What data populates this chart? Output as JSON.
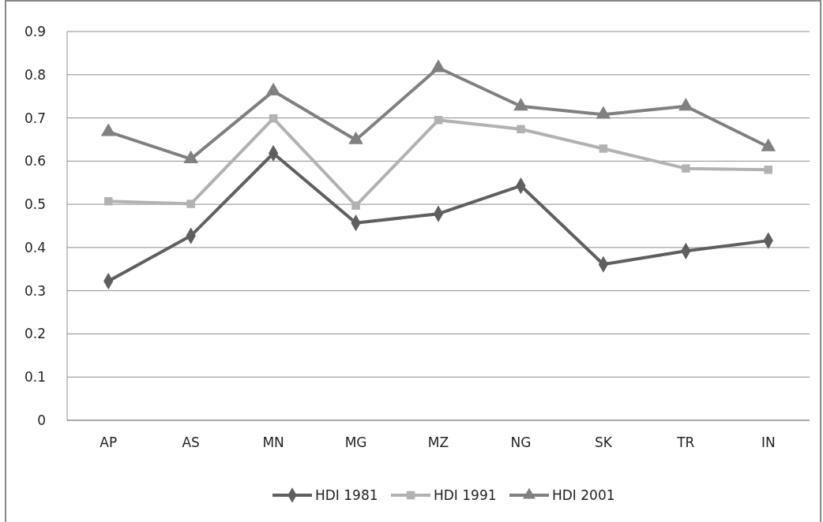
{
  "chart_data": {
    "type": "line",
    "categories": [
      "AP",
      "AS",
      "MN",
      "MG",
      "MZ",
      "NG",
      "SK",
      "TR",
      "IN"
    ],
    "series": [
      {
        "name": "HDI 1981",
        "color": "#5f5f5f",
        "marker": "diamond",
        "values": [
          0.322,
          0.427,
          0.618,
          0.457,
          0.478,
          0.543,
          0.361,
          0.392,
          0.416
        ]
      },
      {
        "name": "HDI 1991",
        "color": "#b2b2b2",
        "marker": "square",
        "values": [
          0.507,
          0.501,
          0.699,
          0.497,
          0.695,
          0.674,
          0.629,
          0.583,
          0.58
        ]
      },
      {
        "name": "HDI 2001",
        "color": "#808080",
        "marker": "triangle",
        "values": [
          0.668,
          0.605,
          0.762,
          0.649,
          0.816,
          0.727,
          0.708,
          0.727,
          0.633
        ]
      }
    ],
    "ylim": [
      0,
      0.9
    ],
    "yticks": [
      0,
      0.1,
      0.2,
      0.3,
      0.4,
      0.5,
      0.6,
      0.7,
      0.8,
      0.9
    ],
    "grid": "y",
    "legend": "bottom"
  }
}
